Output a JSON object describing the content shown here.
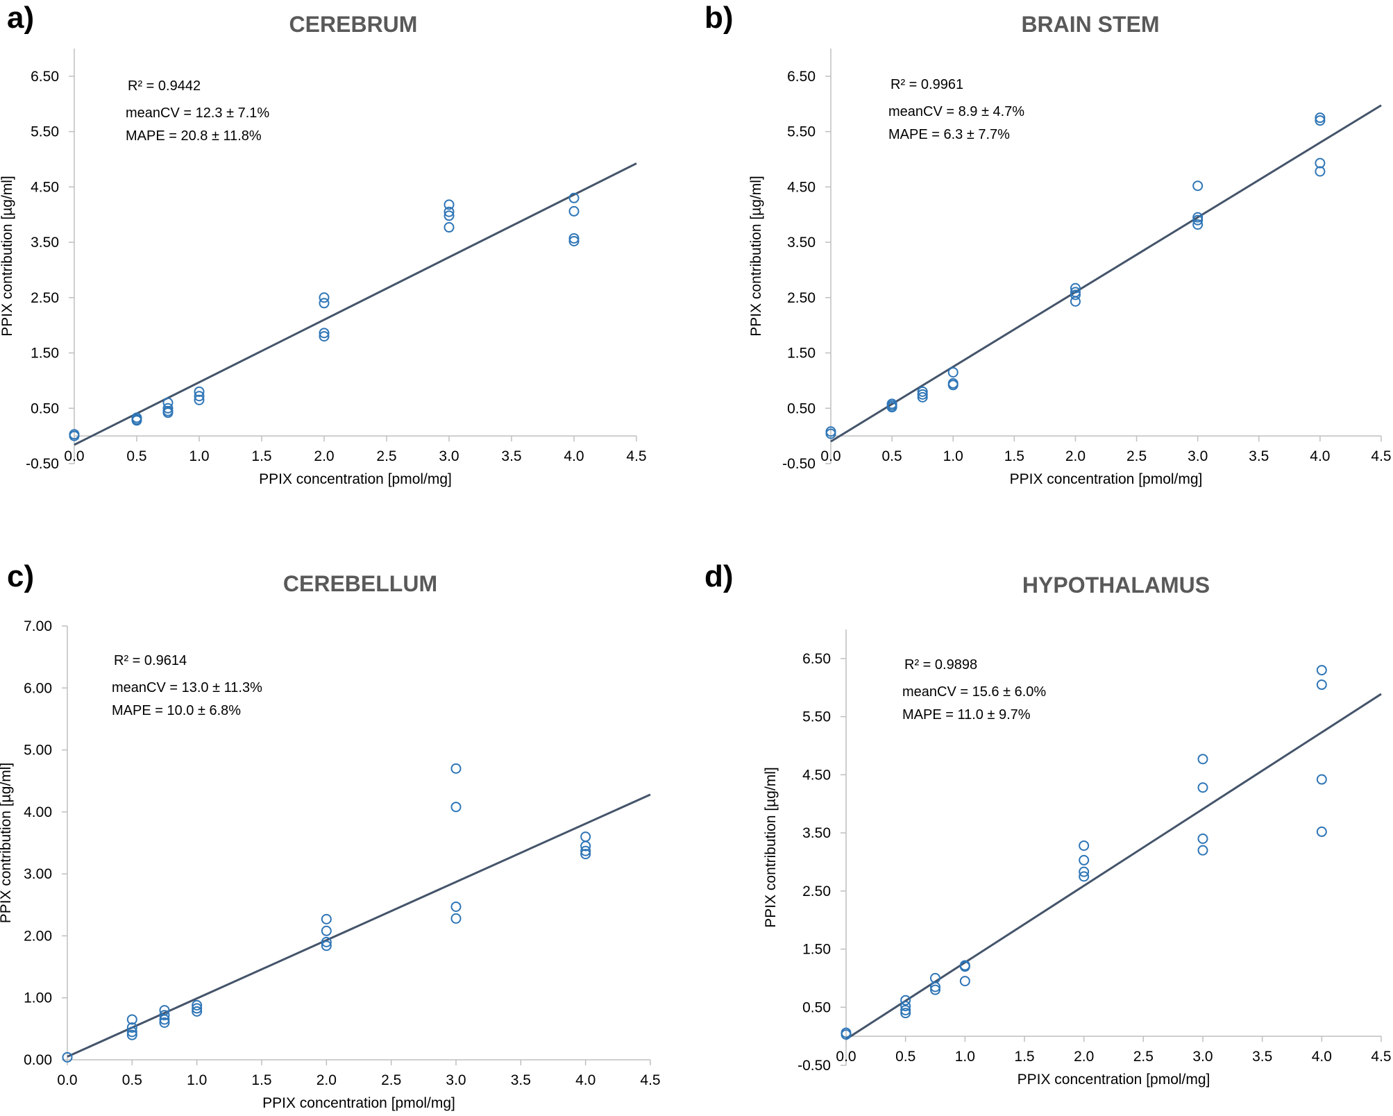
{
  "chart_data": [
    {
      "type": "scatter",
      "panel_label": "a)",
      "title": "CEREBRUM",
      "xlabel": "PPIX concentration [pmol/mg]",
      "ylabel": "PPIX contribution [µg/ml]",
      "xlim": [
        0,
        4.5
      ],
      "ylim": [
        -0.5,
        7.0
      ],
      "x_ticks": [
        "0.0",
        "0.5",
        "1.0",
        "1.5",
        "2.0",
        "2.5",
        "3.0",
        "3.5",
        "4.0",
        "4.5"
      ],
      "y_ticks": [
        "-0.50",
        "0.50",
        "1.50",
        "2.50",
        "3.50",
        "4.50",
        "5.50",
        "6.50"
      ],
      "stats": [
        "R² = 0.9442",
        "meanCV = 12.3 ± 7.1%",
        "MAPE = 20.8 ± 11.8%"
      ],
      "trendline": {
        "slope": 1.13,
        "intercept": -0.16
      },
      "points": [
        [
          0,
          0.03
        ],
        [
          0,
          0.0
        ],
        [
          0.5,
          0.33
        ],
        [
          0.5,
          0.3
        ],
        [
          0.5,
          0.28
        ],
        [
          0.75,
          0.6
        ],
        [
          0.75,
          0.5
        ],
        [
          0.75,
          0.45
        ],
        [
          0.75,
          0.42
        ],
        [
          1.0,
          0.8
        ],
        [
          1.0,
          0.72
        ],
        [
          1.0,
          0.65
        ],
        [
          2.0,
          2.5
        ],
        [
          2.0,
          2.4
        ],
        [
          2.0,
          1.86
        ],
        [
          2.0,
          1.8
        ],
        [
          3.0,
          4.18
        ],
        [
          3.0,
          4.05
        ],
        [
          3.0,
          3.98
        ],
        [
          3.0,
          3.77
        ],
        [
          4.0,
          4.3
        ],
        [
          4.0,
          4.06
        ],
        [
          4.0,
          3.57
        ],
        [
          4.0,
          3.52
        ]
      ]
    },
    {
      "type": "scatter",
      "panel_label": "b)",
      "title": "BRAIN STEM",
      "xlabel": "PPIX concentration [pmol/mg]",
      "ylabel": "PPIX contribution [µg/ml]",
      "xlim": [
        0,
        4.5
      ],
      "ylim": [
        -0.5,
        7.0
      ],
      "x_ticks": [
        "0.0",
        "0.5",
        "1.0",
        "1.5",
        "2.0",
        "2.5",
        "3.0",
        "3.5",
        "4.0",
        "4.5"
      ],
      "y_ticks": [
        "-0.50",
        "0.50",
        "1.50",
        "2.50",
        "3.50",
        "4.50",
        "5.50",
        "6.50"
      ],
      "stats": [
        "R² = 0.9961",
        "meanCV = 8.9 ± 4.7%",
        "MAPE = 6.3 ± 7.7%"
      ],
      "trendline": {
        "slope": 1.35,
        "intercept": -0.1
      },
      "points": [
        [
          0,
          0.08
        ],
        [
          0,
          0.04
        ],
        [
          0.5,
          0.58
        ],
        [
          0.5,
          0.55
        ],
        [
          0.5,
          0.52
        ],
        [
          0.75,
          0.8
        ],
        [
          0.75,
          0.75
        ],
        [
          0.75,
          0.7
        ],
        [
          1.0,
          1.15
        ],
        [
          1.0,
          0.95
        ],
        [
          1.0,
          0.92
        ],
        [
          2.0,
          2.67
        ],
        [
          2.0,
          2.6
        ],
        [
          2.0,
          2.55
        ],
        [
          2.0,
          2.43
        ],
        [
          3.0,
          4.52
        ],
        [
          3.0,
          3.95
        ],
        [
          3.0,
          3.9
        ],
        [
          3.0,
          3.82
        ],
        [
          4.0,
          5.75
        ],
        [
          4.0,
          5.7
        ],
        [
          4.0,
          4.93
        ],
        [
          4.0,
          4.78
        ]
      ]
    },
    {
      "type": "scatter",
      "panel_label": "c)",
      "title": "CEREBELLUM",
      "xlabel": "PPIX concentration [pmol/mg]",
      "ylabel": "PPIX contribution [µg/ml]",
      "xlim": [
        0,
        4.5
      ],
      "ylim": [
        0,
        7.0
      ],
      "x_ticks": [
        "0.0",
        "0.5",
        "1.0",
        "1.5",
        "2.0",
        "2.5",
        "3.0",
        "3.5",
        "4.0",
        "4.5"
      ],
      "y_ticks": [
        "0.00",
        "1.00",
        "2.00",
        "3.00",
        "4.00",
        "5.00",
        "6.00",
        "7.00"
      ],
      "stats": [
        "R² = 0.9614",
        "meanCV = 13.0 ± 11.3%",
        "MAPE = 10.0 ± 6.8%"
      ],
      "trendline": {
        "slope": 0.94,
        "intercept": 0.05
      },
      "points": [
        [
          0,
          0.04
        ],
        [
          0.5,
          0.65
        ],
        [
          0.5,
          0.52
        ],
        [
          0.5,
          0.45
        ],
        [
          0.5,
          0.4
        ],
        [
          0.75,
          0.8
        ],
        [
          0.75,
          0.72
        ],
        [
          0.75,
          0.65
        ],
        [
          0.75,
          0.6
        ],
        [
          1.0,
          0.88
        ],
        [
          1.0,
          0.83
        ],
        [
          1.0,
          0.78
        ],
        [
          2.0,
          2.27
        ],
        [
          2.0,
          2.08
        ],
        [
          2.0,
          1.9
        ],
        [
          2.0,
          1.84
        ],
        [
          3.0,
          4.7
        ],
        [
          3.0,
          4.08
        ],
        [
          3.0,
          2.47
        ],
        [
          3.0,
          2.28
        ],
        [
          4.0,
          3.6
        ],
        [
          4.0,
          3.45
        ],
        [
          4.0,
          3.37
        ],
        [
          4.0,
          3.32
        ]
      ]
    },
    {
      "type": "scatter",
      "panel_label": "d)",
      "title": "HYPOTHALAMUS",
      "xlabel": "PPIX concentration [pmol/mg]",
      "ylabel": "PPIX contribution [µg/ml]",
      "xlim": [
        0,
        4.5
      ],
      "ylim": [
        -0.5,
        7.0
      ],
      "x_ticks": [
        "0.0",
        "0.5",
        "1.0",
        "1.5",
        "2.0",
        "2.5",
        "3.0",
        "3.5",
        "4.0",
        "4.5"
      ],
      "y_ticks": [
        "-0.50",
        "0.50",
        "1.50",
        "2.50",
        "3.50",
        "4.50",
        "5.50",
        "6.50"
      ],
      "stats": [
        "R² = 0.9898",
        "meanCV = 15.6 ± 6.0%",
        "MAPE = 11.0 ± 9.7%"
      ],
      "trendline": {
        "slope": 1.32,
        "intercept": -0.05
      },
      "points": [
        [
          0,
          0.06
        ],
        [
          0,
          0.03
        ],
        [
          0.5,
          0.62
        ],
        [
          0.5,
          0.52
        ],
        [
          0.5,
          0.45
        ],
        [
          0.5,
          0.4
        ],
        [
          0.75,
          1.0
        ],
        [
          0.75,
          0.85
        ],
        [
          0.75,
          0.8
        ],
        [
          1.0,
          1.22
        ],
        [
          1.0,
          1.2
        ],
        [
          1.0,
          0.95
        ],
        [
          2.0,
          3.28
        ],
        [
          2.0,
          3.03
        ],
        [
          2.0,
          2.83
        ],
        [
          2.0,
          2.75
        ],
        [
          3.0,
          4.77
        ],
        [
          3.0,
          4.28
        ],
        [
          3.0,
          3.4
        ],
        [
          3.0,
          3.2
        ],
        [
          4.0,
          6.3
        ],
        [
          4.0,
          6.05
        ],
        [
          4.0,
          4.42
        ],
        [
          4.0,
          3.52
        ]
      ]
    }
  ]
}
